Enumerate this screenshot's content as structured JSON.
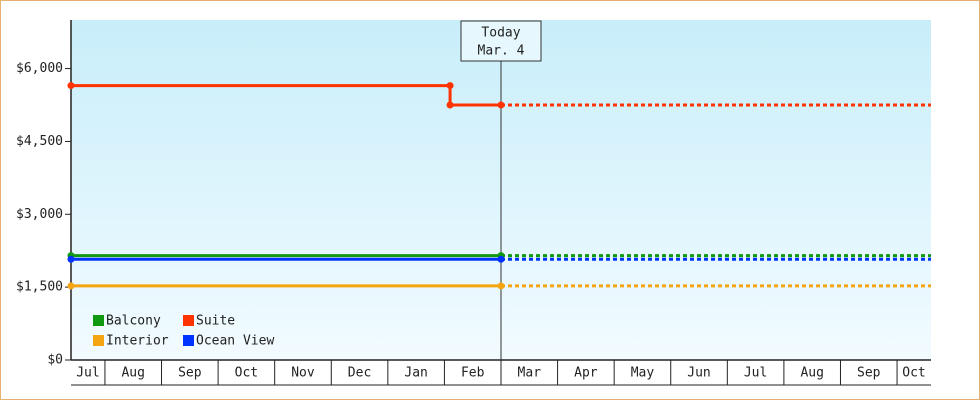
{
  "chart_data": {
    "type": "line",
    "step": true,
    "categories": [
      "Jul",
      "Aug",
      "Sep",
      "Oct",
      "Nov",
      "Dec",
      "Jan",
      "Feb",
      "Mar",
      "Apr",
      "May",
      "Jun",
      "Jul",
      "Aug",
      "Sep",
      "Oct"
    ],
    "xlim": [
      0.4,
      15.6
    ],
    "ylim": [
      0,
      7000
    ],
    "yticks": [
      {
        "value": 0,
        "label": "$0"
      },
      {
        "value": 1500,
        "label": "$1,500"
      },
      {
        "value": 3000,
        "label": "$3,000"
      },
      {
        "value": 4500,
        "label": "$4,500"
      },
      {
        "value": 6000,
        "label": "$6,000"
      }
    ],
    "annotation": {
      "x": 8.0,
      "lines": [
        "Today",
        "Mar. 4"
      ]
    },
    "series": [
      {
        "name": "Balcony",
        "color": "#119911",
        "x": [
          0.4,
          8.0
        ],
        "values": [
          2150,
          2150
        ]
      },
      {
        "name": "Interior",
        "color": "#f5a511",
        "x": [
          0.4,
          8.0
        ],
        "values": [
          1525,
          1525
        ]
      },
      {
        "name": "Suite",
        "color": "#ff3300",
        "x": [
          0.4,
          7.1,
          7.1,
          8.0
        ],
        "values": [
          5650,
          5650,
          5250,
          5250
        ]
      },
      {
        "name": "Ocean View",
        "color": "#0033ff",
        "x": [
          0.4,
          8.0
        ],
        "values": [
          2075,
          2075
        ]
      }
    ]
  }
}
